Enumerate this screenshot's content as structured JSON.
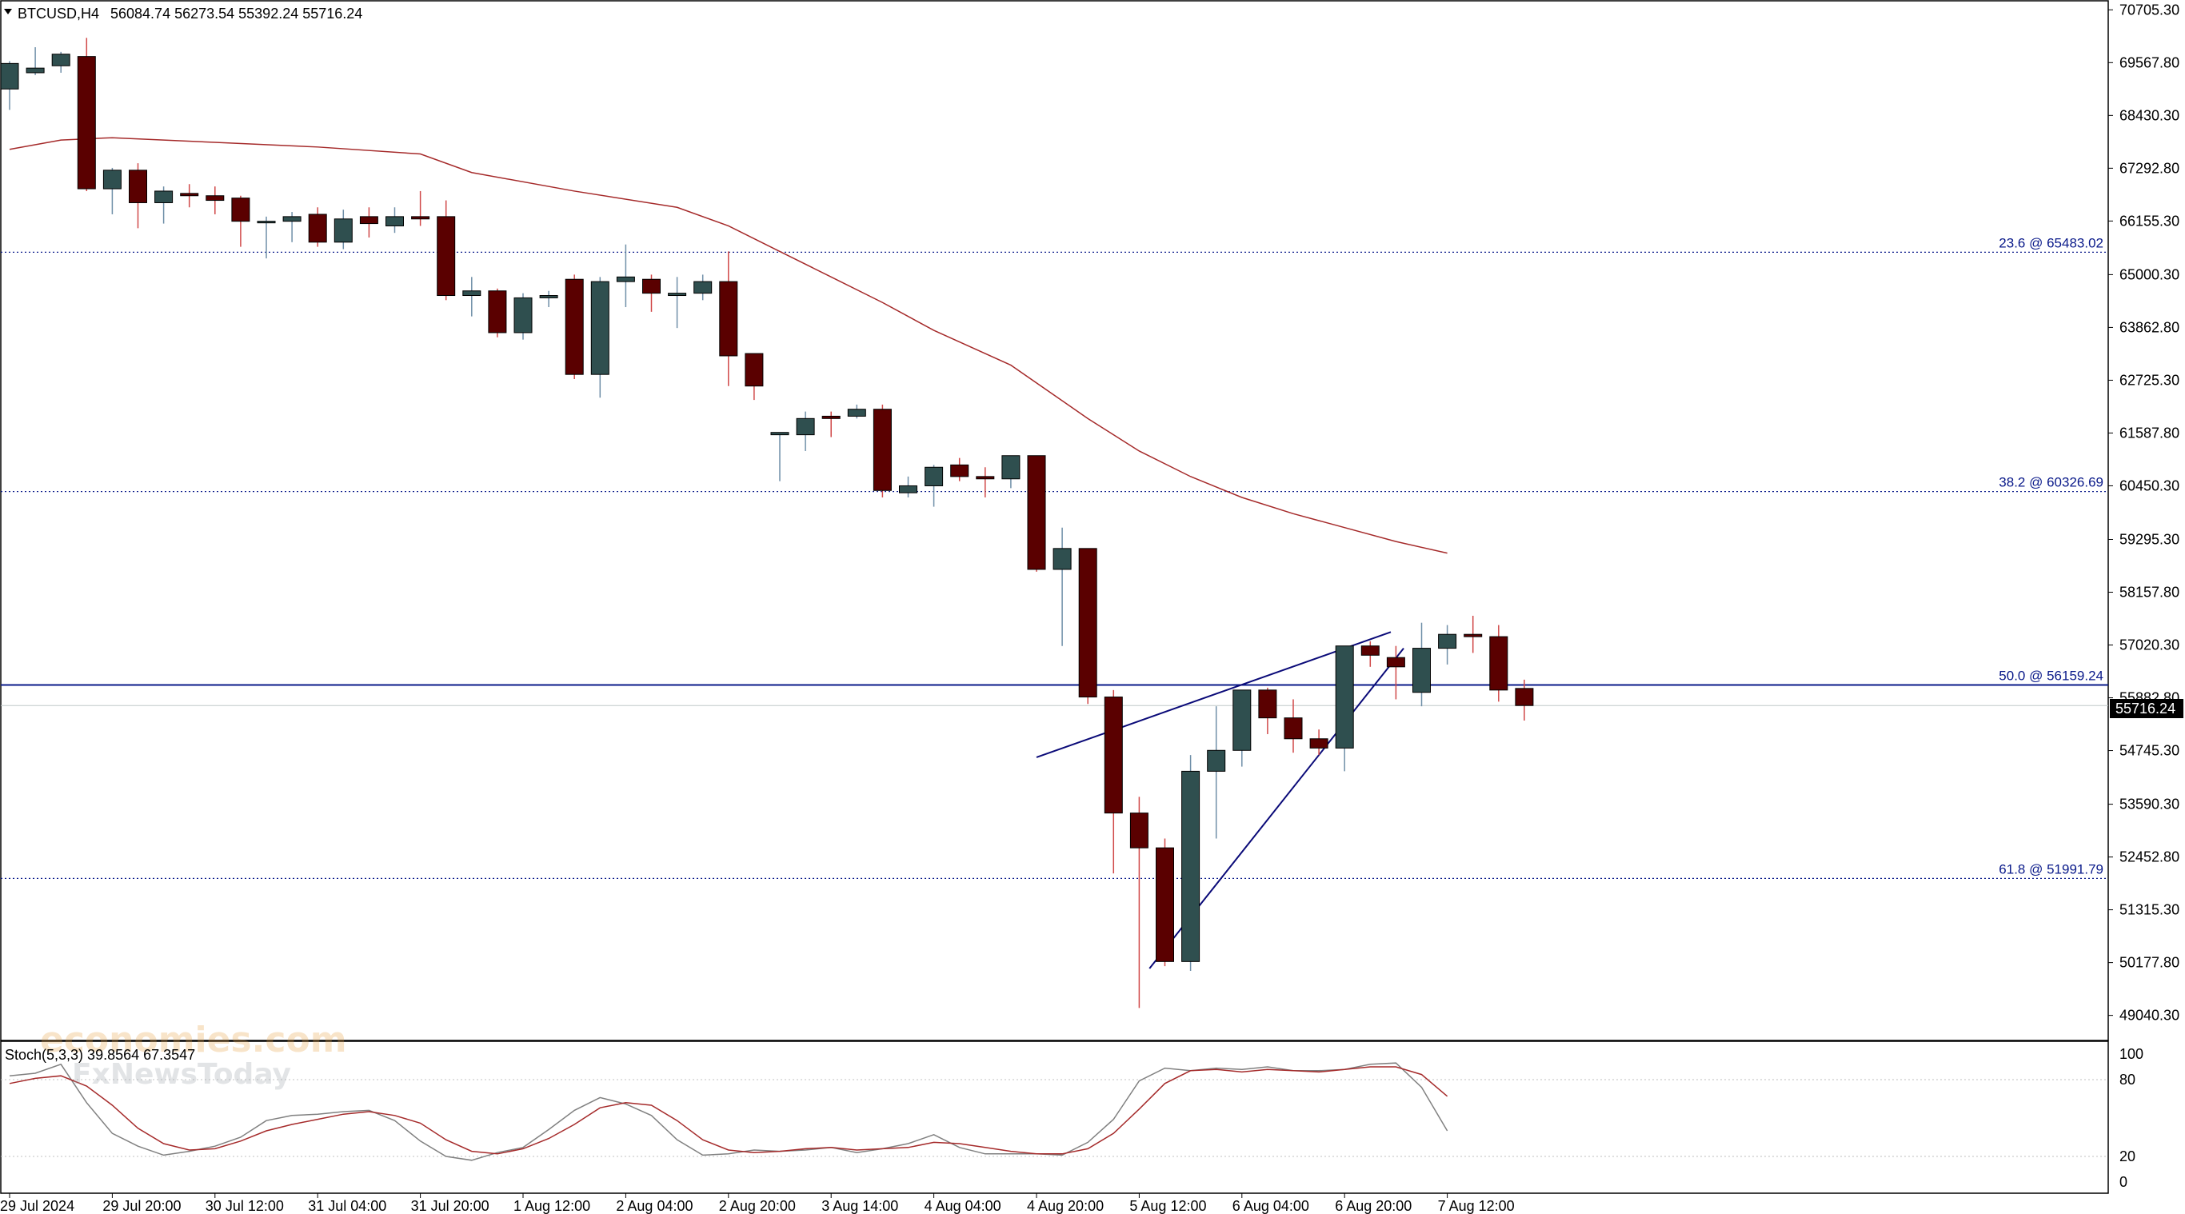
{
  "header": {
    "symbol_label": "BTCUSD,H4",
    "ohlc_text": "56084.74 56273.54 55392.24 55716.24"
  },
  "current_price_label": "55716.24",
  "stoch": {
    "label": "Stoch(5,3,3) 39.8564 67.3547",
    "levels": [
      "100",
      "80",
      "20",
      "0"
    ]
  },
  "watermark": {
    "line1": "economies.com",
    "line2": "FxNewsToday"
  },
  "colors": {
    "bull": "#2f4f4f",
    "bear": "#5a0000",
    "ma": "#a52a2a",
    "fib": "#0a1a8a",
    "stoch_main": "#808080",
    "stoch_signal": "#a52a2a"
  },
  "chart_data": {
    "type": "candlestick",
    "symbol": "BTCUSD",
    "timeframe": "H4",
    "y_range": [
      48500,
      70900
    ],
    "y_ticks": [
      "70705.30",
      "69567.80",
      "68430.30",
      "67292.80",
      "66155.30",
      "65000.30",
      "63862.80",
      "62725.30",
      "61587.80",
      "60450.30",
      "59295.30",
      "58157.80",
      "57020.30",
      "55882.80",
      "54745.30",
      "53590.30",
      "52452.80",
      "51315.30",
      "50177.80",
      "49040.30"
    ],
    "x_tick_labels": [
      {
        "i": 0,
        "label": "29 Jul 2024"
      },
      {
        "i": 4,
        "label": "29 Jul 20:00"
      },
      {
        "i": 8,
        "label": "30 Jul 12:00"
      },
      {
        "i": 12,
        "label": "31 Jul 04:00"
      },
      {
        "i": 16,
        "label": "31 Jul 20:00"
      },
      {
        "i": 20,
        "label": "1 Aug 12:00"
      },
      {
        "i": 24,
        "label": "2 Aug 04:00"
      },
      {
        "i": 28,
        "label": "2 Aug 20:00"
      },
      {
        "i": 32,
        "label": "3 Aug 14:00"
      },
      {
        "i": 36,
        "label": "4 Aug 04:00"
      },
      {
        "i": 40,
        "label": "4 Aug 20:00"
      },
      {
        "i": 44,
        "label": "5 Aug 12:00"
      },
      {
        "i": 48,
        "label": "6 Aug 04:00"
      },
      {
        "i": 52,
        "label": "6 Aug 20:00"
      },
      {
        "i": 56,
        "label": "7 Aug 12:00"
      }
    ],
    "candles": [
      [
        69000,
        69600,
        68550,
        69550
      ],
      [
        69350,
        69900,
        69300,
        69450
      ],
      [
        69500,
        69800,
        69350,
        69750
      ],
      [
        69700,
        70100,
        66800,
        66850
      ],
      [
        66850,
        67300,
        66300,
        67250
      ],
      [
        67250,
        67400,
        66000,
        66550
      ],
      [
        66550,
        66900,
        66100,
        66800
      ],
      [
        66750,
        66950,
        66450,
        66700
      ],
      [
        66700,
        66900,
        66300,
        66600
      ],
      [
        66650,
        66700,
        65600,
        66150
      ],
      [
        66150,
        66250,
        65350,
        66150
      ],
      [
        66150,
        66350,
        65700,
        66250
      ],
      [
        66300,
        66450,
        65600,
        65700
      ],
      [
        65700,
        66400,
        65550,
        66200
      ],
      [
        66250,
        66450,
        65800,
        66100
      ],
      [
        66050,
        66450,
        65900,
        66250
      ],
      [
        66250,
        66800,
        66050,
        66200
      ],
      [
        66250,
        66600,
        64450,
        64550
      ],
      [
        64550,
        64950,
        64100,
        64650
      ],
      [
        64650,
        64700,
        63650,
        63750
      ],
      [
        63750,
        64600,
        63600,
        64500
      ],
      [
        64500,
        64650,
        64300,
        64550
      ],
      [
        64900,
        65000,
        62750,
        62850
      ],
      [
        62850,
        64950,
        62350,
        64850
      ],
      [
        64850,
        65650,
        64300,
        64950
      ],
      [
        64900,
        65000,
        64200,
        64600
      ],
      [
        64550,
        64950,
        63850,
        64600
      ],
      [
        64600,
        65000,
        64450,
        64850
      ],
      [
        64850,
        65500,
        62600,
        63250
      ],
      [
        63300,
        63300,
        62300,
        62600
      ],
      [
        61550,
        61600,
        60550,
        61600
      ],
      [
        61550,
        62050,
        61200,
        61900
      ],
      [
        61950,
        62050,
        61500,
        61900
      ],
      [
        61950,
        62200,
        61900,
        62100
      ],
      [
        62100,
        62200,
        60200,
        60350
      ],
      [
        60300,
        60650,
        60200,
        60450
      ],
      [
        60450,
        60900,
        60000,
        60850
      ],
      [
        60900,
        61050,
        60550,
        60650
      ],
      [
        60650,
        60850,
        60200,
        60600
      ],
      [
        60600,
        61100,
        60400,
        61100
      ],
      [
        61100,
        61100,
        58600,
        58650
      ],
      [
        58650,
        59550,
        57000,
        59100
      ],
      [
        59100,
        59100,
        55750,
        55900
      ],
      [
        55900,
        56050,
        52100,
        53400
      ],
      [
        53400,
        53750,
        49200,
        52650
      ],
      [
        52650,
        52850,
        50100,
        50200
      ],
      [
        50200,
        54650,
        50000,
        54300
      ],
      [
        54300,
        55700,
        52850,
        54750
      ],
      [
        54750,
        55900,
        54400,
        56050
      ],
      [
        56050,
        56100,
        55100,
        55450
      ],
      [
        55450,
        55850,
        54700,
        55000
      ],
      [
        55000,
        55200,
        54650,
        54800
      ],
      [
        54800,
        57000,
        54300,
        57000
      ],
      [
        57000,
        57100,
        56550,
        56800
      ],
      [
        56750,
        57000,
        55850,
        56550
      ],
      [
        56000,
        57500,
        55700,
        56950
      ],
      [
        56950,
        57450,
        56600,
        57250
      ],
      [
        57250,
        57650,
        56850,
        57200
      ],
      [
        57200,
        57450,
        55800,
        56050
      ],
      [
        56084.74,
        56273.54,
        55392.24,
        55716.24
      ]
    ],
    "ma": [
      [
        0,
        67700
      ],
      [
        2,
        67900
      ],
      [
        4,
        67950
      ],
      [
        8,
        67850
      ],
      [
        12,
        67750
      ],
      [
        16,
        67600
      ],
      [
        18,
        67200
      ],
      [
        22,
        66800
      ],
      [
        26,
        66450
      ],
      [
        28,
        66050
      ],
      [
        30,
        65500
      ],
      [
        32,
        64950
      ],
      [
        34,
        64400
      ],
      [
        36,
        63800
      ],
      [
        39,
        63050
      ],
      [
        42,
        61900
      ],
      [
        44,
        61200
      ],
      [
        46,
        60650
      ],
      [
        48,
        60200
      ],
      [
        50,
        59850
      ],
      [
        52,
        59550
      ],
      [
        54,
        59250
      ],
      [
        56,
        59000
      ]
    ],
    "fib_levels": [
      {
        "price": 65483.02,
        "label": "23.6 @ 65483.02",
        "style": "dotted"
      },
      {
        "price": 60326.69,
        "label": "38.2 @ 60326.69",
        "style": "dotted"
      },
      {
        "price": 56159.24,
        "label": "50.0 @ 56159.24",
        "style": "solid"
      },
      {
        "price": 51991.79,
        "label": "61.8 @ 51991.79",
        "style": "dotted"
      }
    ],
    "trendlines": [
      {
        "from": [
          40,
          54600
        ],
        "to": [
          53.8,
          57300
        ]
      },
      {
        "from": [
          44.4,
          50050
        ],
        "to": [
          54.3,
          56950
        ]
      }
    ],
    "stoch_main": [
      83,
      85,
      92,
      62,
      38,
      28,
      21,
      24,
      28,
      35,
      48,
      52,
      53,
      55,
      56,
      48,
      32,
      20,
      17,
      23,
      27,
      41,
      56,
      66,
      61,
      52,
      33,
      21,
      22,
      25,
      24,
      25,
      27,
      23,
      26,
      30,
      37,
      27,
      22,
      22,
      22,
      21,
      31,
      49,
      79,
      89,
      87,
      89,
      88,
      90,
      87,
      87,
      88,
      92,
      93,
      74,
      40
    ],
    "stoch_signal": [
      77,
      81,
      83,
      75,
      60,
      42,
      30,
      25,
      26,
      32,
      40,
      45,
      49,
      53,
      55,
      52,
      46,
      33,
      24,
      22,
      26,
      34,
      45,
      58,
      62,
      60,
      48,
      33,
      25,
      23,
      24,
      26,
      27,
      25,
      26,
      27,
      31,
      30,
      27,
      24,
      22,
      22,
      26,
      38,
      57,
      77,
      87,
      88,
      86,
      88,
      87,
      86,
      88,
      90,
      90,
      84,
      67
    ]
  }
}
